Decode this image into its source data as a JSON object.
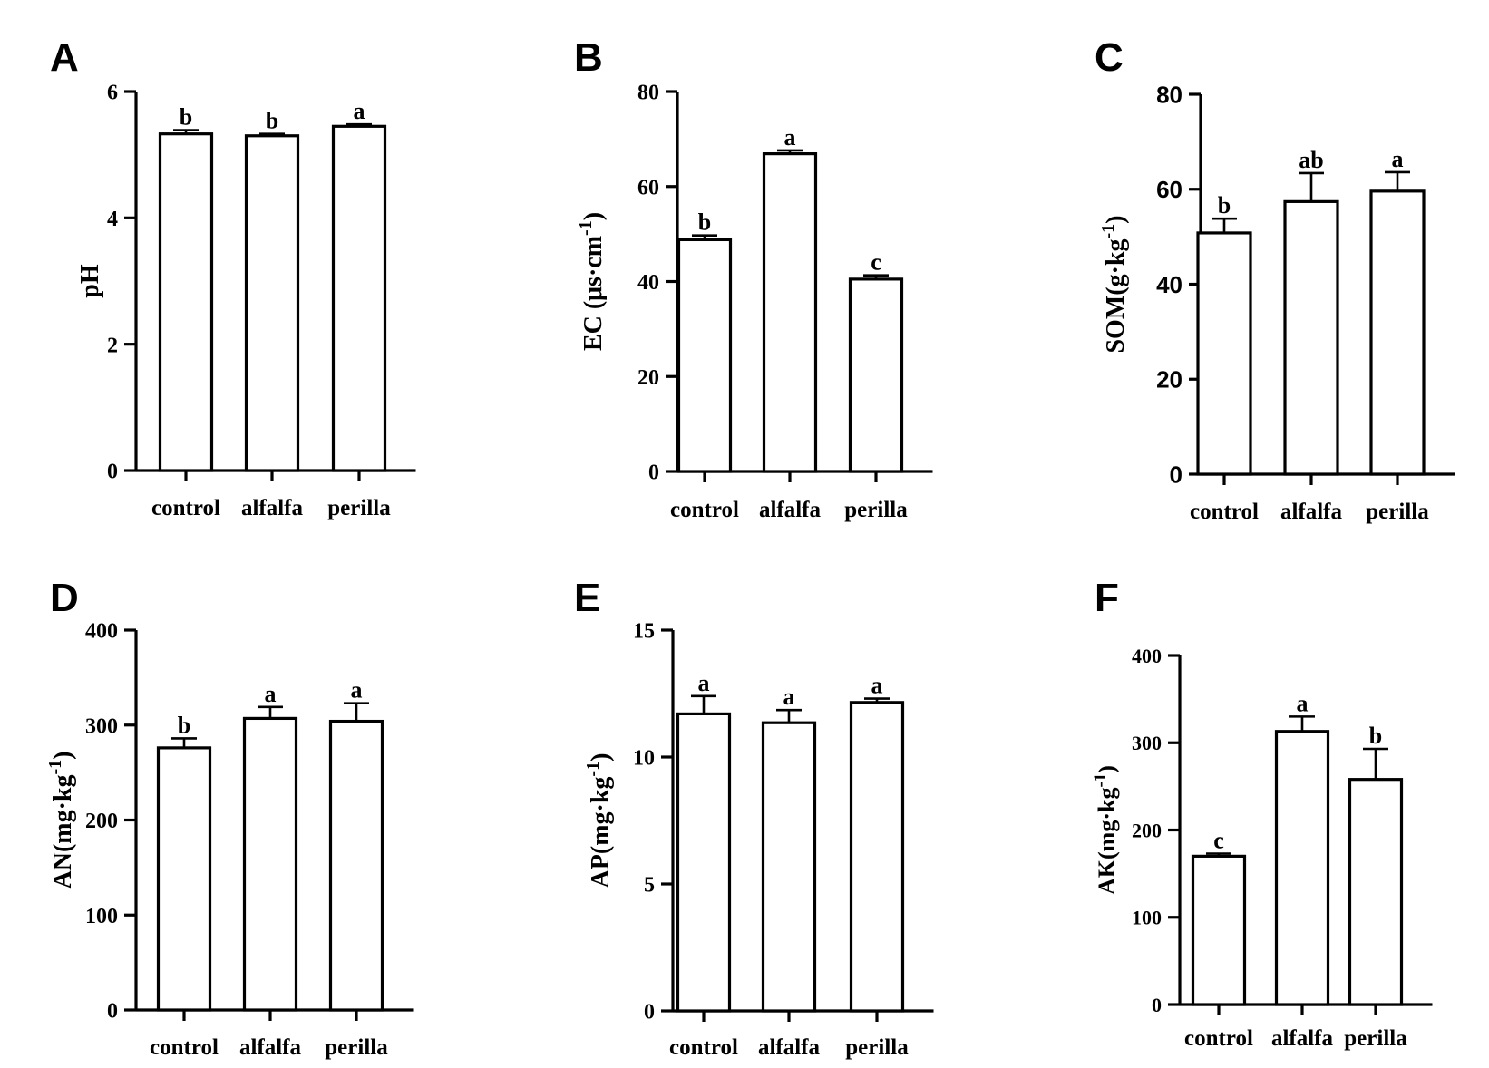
{
  "figure": {
    "panels": [
      "A",
      "B",
      "C",
      "D",
      "E",
      "F"
    ],
    "categories": [
      "control",
      "alfalfa",
      "perilla"
    ]
  },
  "chart_data": [
    {
      "panel": "A",
      "type": "bar",
      "title": "",
      "xlabel": "",
      "ylabel": "pH",
      "ylabel_sup": "",
      "ylabel_close": "",
      "ylim": [
        0,
        6
      ],
      "yticks": [
        0,
        2,
        4,
        6
      ],
      "categories": [
        "control",
        "alfalfa",
        "perilla"
      ],
      "values": [
        5.33,
        5.3,
        5.45
      ],
      "errors": [
        0.06,
        0.03,
        0.03
      ],
      "letters": [
        "b",
        "b",
        "a"
      ],
      "grid": false,
      "legend": "none"
    },
    {
      "panel": "B",
      "type": "bar",
      "title": "",
      "xlabel": "",
      "ylabel": "EC (μs·cm",
      "ylabel_sup": "-1",
      "ylabel_close": ")",
      "ylim": [
        0,
        80
      ],
      "yticks": [
        0,
        20,
        40,
        60,
        80
      ],
      "categories": [
        "control",
        "alfalfa",
        "perilla"
      ],
      "values": [
        48.8,
        66.9,
        40.5
      ],
      "errors": [
        0.9,
        0.7,
        0.8
      ],
      "letters": [
        "b",
        "a",
        "c"
      ],
      "grid": false,
      "legend": "none"
    },
    {
      "panel": "C",
      "type": "bar",
      "title": "",
      "xlabel": "",
      "ylabel": "SOM(g·kg",
      "ylabel_sup": "-1",
      "ylabel_close": ")",
      "ylim": [
        0,
        80
      ],
      "yticks": [
        0,
        20,
        40,
        60,
        80
      ],
      "categories": [
        "control",
        "alfalfa",
        "perilla"
      ],
      "values": [
        50.8,
        57.4,
        59.6
      ],
      "errors": [
        3.0,
        6.0,
        4.0
      ],
      "letters": [
        "b",
        "ab",
        "a"
      ],
      "grid": false,
      "legend": "none"
    },
    {
      "panel": "D",
      "type": "bar",
      "title": "",
      "xlabel": "",
      "ylabel": "AN(mg·kg",
      "ylabel_sup": "-1",
      "ylabel_close": ")",
      "ylim": [
        0,
        400
      ],
      "yticks": [
        0,
        100,
        200,
        300,
        400
      ],
      "categories": [
        "control",
        "alfalfa",
        "perilla"
      ],
      "values": [
        276,
        307,
        304
      ],
      "errors": [
        10,
        12,
        19
      ],
      "letters": [
        "b",
        "a",
        "a"
      ],
      "grid": false,
      "legend": "none"
    },
    {
      "panel": "E",
      "type": "bar",
      "title": "",
      "xlabel": "",
      "ylabel": "AP(mg·kg",
      "ylabel_sup": "-1",
      "ylabel_close": ")",
      "ylim": [
        0,
        15
      ],
      "yticks": [
        0,
        5,
        10,
        15
      ],
      "categories": [
        "control",
        "alfalfa",
        "perilla"
      ],
      "values": [
        11.7,
        11.35,
        12.15
      ],
      "errors": [
        0.7,
        0.5,
        0.15
      ],
      "letters": [
        "a",
        "a",
        "a"
      ],
      "grid": false,
      "legend": "none"
    },
    {
      "panel": "F",
      "type": "bar",
      "title": "",
      "xlabel": "",
      "ylabel": "AK(mg·kg",
      "ylabel_sup": "-1",
      "ylabel_close": ")",
      "ylim": [
        0,
        400
      ],
      "yticks": [
        0,
        100,
        200,
        300,
        400
      ],
      "categories": [
        "control",
        "alfalfa",
        "perilla"
      ],
      "values": [
        170,
        313,
        258
      ],
      "errors": [
        3,
        17,
        35
      ],
      "letters": [
        "c",
        "a",
        "b"
      ],
      "grid": false,
      "legend": "none"
    }
  ]
}
